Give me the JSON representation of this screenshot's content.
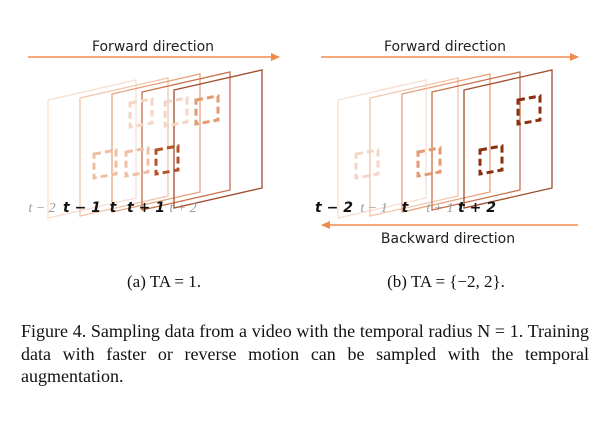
{
  "panel_a": {
    "forward_label": "Forward direction",
    "ticks": [
      {
        "text": "t − 2",
        "style": "faded"
      },
      {
        "text": "t − 1",
        "style": "bold"
      },
      {
        "text": "t",
        "style": "bold"
      },
      {
        "text": "t + 1",
        "style": "bold"
      },
      {
        "text": "t + 2",
        "style": "faded"
      }
    ],
    "subcaption": "(a) TA = 1."
  },
  "panel_b": {
    "forward_label": "Forward direction",
    "backward_label": "Backward direction",
    "ticks": [
      {
        "text": "t − 2",
        "style": "bold"
      },
      {
        "text": "t − 1",
        "style": "faded"
      },
      {
        "text": "t",
        "style": "bold"
      },
      {
        "text": "t + 1",
        "style": "faded"
      },
      {
        "text": "t + 2",
        "style": "bold"
      }
    ],
    "subcaption": "(b) TA = {−2, 2}."
  },
  "caption": {
    "text": "Figure 4. Sampling data from a video with the temporal radius N = 1. Training data with faster or reverse motion can be sampled with the temporal augmentation."
  },
  "colors": {
    "arrow": "#f08b4e",
    "frame_levels": [
      "#f7ded0",
      "#f2c6ab",
      "#e8a37c",
      "#c8714a",
      "#9e4d2c"
    ],
    "box_levels": [
      "#f5d6c6",
      "#efbfa4",
      "#e39a70",
      "#b5542a",
      "#8a2f10"
    ],
    "text_faded": "#9a9a9a",
    "text_bold": "#111111"
  }
}
